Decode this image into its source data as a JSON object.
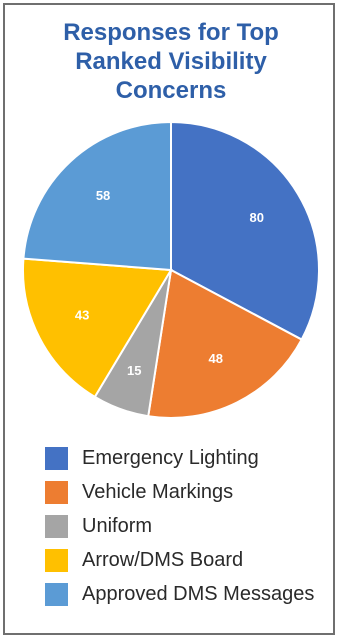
{
  "chart_data": {
    "type": "pie",
    "title": [
      "Responses for Top",
      "Ranked Visibility",
      "Concerns"
    ],
    "categories": [
      "Emergency Lighting",
      "Vehicle Markings",
      "Uniform",
      "Arrow/DMS Board",
      "Approved DMS Messages"
    ],
    "values": [
      80,
      48,
      15,
      43,
      58
    ],
    "colors": [
      "#4472c4",
      "#ed7d31",
      "#a5a5a5",
      "#ffc000",
      "#5b9bd5"
    ],
    "legend_position": "bottom"
  }
}
